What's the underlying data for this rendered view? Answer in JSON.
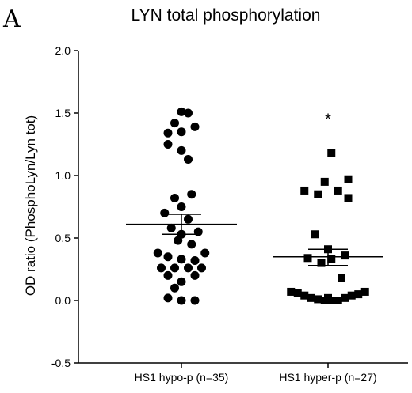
{
  "panel_label": "A",
  "chart_data": {
    "type": "scatter",
    "title": "LYN total phosphorylation",
    "xlabel": "",
    "ylabel": "OD ratio (PhosphoLyn/Lyn tot)",
    "ylim": [
      -0.5,
      2.0
    ],
    "yticks": [
      "-0.5",
      "0.0",
      "0.5",
      "1.0",
      "1.5",
      "2.0"
    ],
    "grid": false,
    "legend": "none",
    "categories": [
      "HS1 hypo-p (n=35)",
      "HS1 hyper-p (n=27)"
    ],
    "series": [
      {
        "category": "HS1 hypo-p (n=35)",
        "marker": "circle",
        "mean": 0.61,
        "sem_low": 0.53,
        "sem_high": 0.69,
        "points": [
          {
            "x": 0.0,
            "y": 1.51
          },
          {
            "x": 0.1,
            "y": 1.5
          },
          {
            "x": -0.1,
            "y": 1.42
          },
          {
            "x": 0.2,
            "y": 1.39
          },
          {
            "x": -0.2,
            "y": 1.34
          },
          {
            "x": 0.0,
            "y": 1.35
          },
          {
            "x": -0.2,
            "y": 1.25
          },
          {
            "x": 0.0,
            "y": 1.2
          },
          {
            "x": 0.1,
            "y": 1.13
          },
          {
            "x": -0.1,
            "y": 0.82
          },
          {
            "x": 0.15,
            "y": 0.85
          },
          {
            "x": 0.0,
            "y": 0.75
          },
          {
            "x": -0.25,
            "y": 0.7
          },
          {
            "x": 0.1,
            "y": 0.65
          },
          {
            "x": -0.15,
            "y": 0.58
          },
          {
            "x": 0.25,
            "y": 0.55
          },
          {
            "x": 0.0,
            "y": 0.53
          },
          {
            "x": -0.05,
            "y": 0.48
          },
          {
            "x": 0.15,
            "y": 0.45
          },
          {
            "x": -0.35,
            "y": 0.38
          },
          {
            "x": 0.35,
            "y": 0.38
          },
          {
            "x": -0.2,
            "y": 0.35
          },
          {
            "x": 0.2,
            "y": 0.32
          },
          {
            "x": 0.0,
            "y": 0.33
          },
          {
            "x": -0.3,
            "y": 0.26
          },
          {
            "x": -0.1,
            "y": 0.26
          },
          {
            "x": 0.1,
            "y": 0.26
          },
          {
            "x": 0.3,
            "y": 0.26
          },
          {
            "x": -0.2,
            "y": 0.2
          },
          {
            "x": 0.2,
            "y": 0.2
          },
          {
            "x": 0.0,
            "y": 0.15
          },
          {
            "x": -0.1,
            "y": 0.1
          },
          {
            "x": -0.2,
            "y": 0.02
          },
          {
            "x": 0.0,
            "y": 0.0
          },
          {
            "x": 0.2,
            "y": 0.0
          }
        ]
      },
      {
        "category": "HS1 hyper-p (n=27)",
        "marker": "square",
        "mean": 0.35,
        "sem_low": 0.28,
        "sem_high": 0.41,
        "annotation": "*",
        "annotation_y": 1.47,
        "points": [
          {
            "x": 0.05,
            "y": 1.18
          },
          {
            "x": -0.05,
            "y": 0.95
          },
          {
            "x": 0.3,
            "y": 0.97
          },
          {
            "x": -0.35,
            "y": 0.88
          },
          {
            "x": 0.15,
            "y": 0.88
          },
          {
            "x": -0.15,
            "y": 0.85
          },
          {
            "x": 0.3,
            "y": 0.82
          },
          {
            "x": -0.2,
            "y": 0.53
          },
          {
            "x": 0.0,
            "y": 0.41
          },
          {
            "x": -0.3,
            "y": 0.34
          },
          {
            "x": 0.05,
            "y": 0.33
          },
          {
            "x": 0.25,
            "y": 0.36
          },
          {
            "x": -0.1,
            "y": 0.3
          },
          {
            "x": 0.2,
            "y": 0.18
          },
          {
            "x": -0.55,
            "y": 0.07
          },
          {
            "x": 0.55,
            "y": 0.07
          },
          {
            "x": -0.45,
            "y": 0.06
          },
          {
            "x": 0.45,
            "y": 0.05
          },
          {
            "x": -0.35,
            "y": 0.04
          },
          {
            "x": 0.35,
            "y": 0.04
          },
          {
            "x": -0.25,
            "y": 0.02
          },
          {
            "x": 0.25,
            "y": 0.02
          },
          {
            "x": -0.15,
            "y": 0.01
          },
          {
            "x": 0.15,
            "y": 0.0
          },
          {
            "x": -0.05,
            "y": 0.0
          },
          {
            "x": 0.05,
            "y": 0.0
          },
          {
            "x": 0.0,
            "y": 0.02
          }
        ]
      }
    ]
  }
}
